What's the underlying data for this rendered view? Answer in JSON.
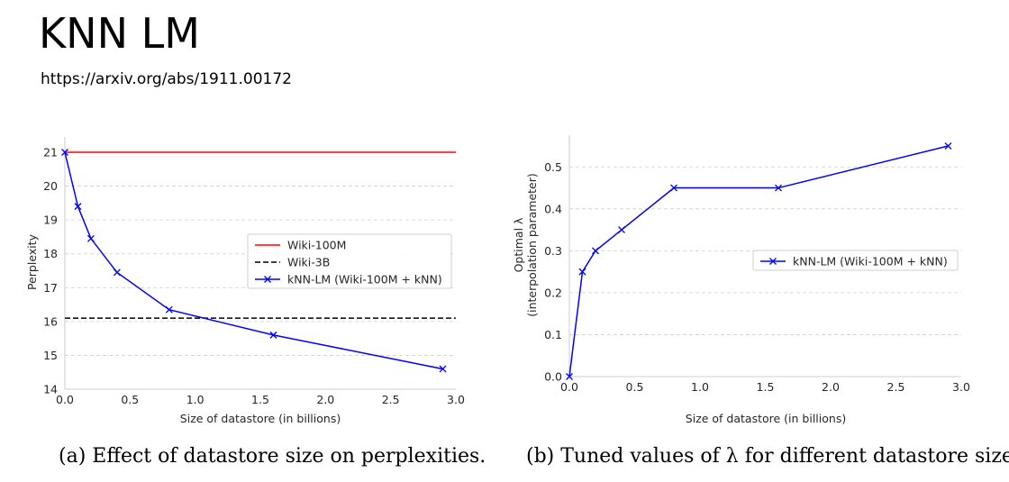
{
  "page": {
    "title": "KNN LM",
    "subtitle": "https://arxiv.org/abs/1911.00172"
  },
  "chart_data": [
    {
      "type": "line",
      "caption": "(a) Effect of datastore size on perplexities.",
      "xlabel": "Size of datastore (in billions)",
      "ylabel": "Perplexity",
      "xlim": [
        0.0,
        3.0
      ],
      "ylim": [
        14,
        21
      ],
      "xticks": [
        "0.0",
        "0.5",
        "1.0",
        "1.5",
        "2.0",
        "2.5",
        "3.0"
      ],
      "yticks": [
        "14",
        "15",
        "16",
        "17",
        "18",
        "19",
        "20",
        "21"
      ],
      "grid": "horizontal dashed",
      "legend_position": "center-right",
      "series": [
        {
          "name": "Wiki-100M",
          "style": "solid",
          "color": "#ff0000",
          "x": [
            0.0,
            3.0
          ],
          "y": [
            21.0,
            21.0
          ]
        },
        {
          "name": "Wiki-3B",
          "style": "dashed",
          "color": "#000000",
          "x": [
            0.0,
            3.0
          ],
          "y": [
            16.1,
            16.1
          ]
        },
        {
          "name": "kNN-LM (Wiki-100M + kNN)",
          "style": "solid-x",
          "color": "#0000ff",
          "x": [
            0.0,
            0.1,
            0.2,
            0.4,
            0.8,
            1.6,
            2.9
          ],
          "y": [
            21.0,
            19.4,
            18.45,
            17.45,
            16.35,
            15.6,
            14.6
          ]
        }
      ]
    },
    {
      "type": "line",
      "caption": "(b) Tuned values of λ for different datastore sizes.",
      "xlabel": "Size of datastore (in billions)",
      "ylabel": "Optimal λ",
      "ylabel2": "(interpolation parameter)",
      "xlim": [
        0.0,
        3.0
      ],
      "ylim": [
        0.0,
        0.55
      ],
      "xticks": [
        "0.0",
        "0.5",
        "1.0",
        "1.5",
        "2.0",
        "2.5",
        "3.0"
      ],
      "yticks": [
        "0.0",
        "0.1",
        "0.2",
        "0.3",
        "0.4",
        "0.5"
      ],
      "grid": "horizontal dashed",
      "legend_position": "center-right",
      "series": [
        {
          "name": "kNN-LM (Wiki-100M + kNN)",
          "style": "solid-x",
          "color": "#0000ff",
          "x": [
            0.0,
            0.1,
            0.2,
            0.4,
            0.8,
            1.6,
            2.9
          ],
          "y": [
            0.0,
            0.25,
            0.3,
            0.35,
            0.45,
            0.45,
            0.55
          ]
        }
      ]
    }
  ]
}
